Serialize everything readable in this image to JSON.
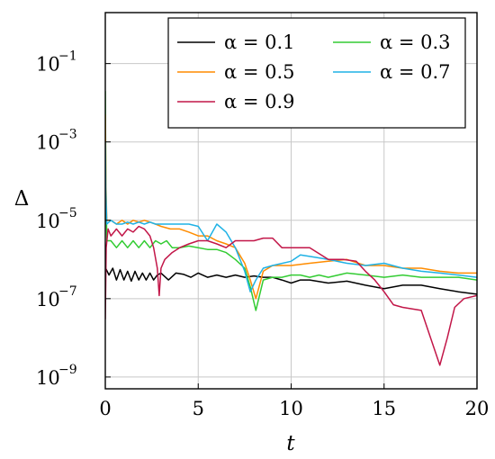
{
  "chart_data": {
    "type": "line",
    "xlabel": "t",
    "ylabel": "Δ",
    "xlim": [
      0,
      20
    ],
    "ylim": [
      5e-10,
      2
    ],
    "yscale": "log",
    "grid": true,
    "legend_position": "top-right",
    "xticks": [
      {
        "value": 0,
        "label": "0"
      },
      {
        "value": 5,
        "label": "5"
      },
      {
        "value": 10,
        "label": "10"
      },
      {
        "value": 15,
        "label": "15"
      },
      {
        "value": 20,
        "label": "20"
      }
    ],
    "yticks": [
      {
        "value": 0.1,
        "base": "10",
        "exp": "−1"
      },
      {
        "value": 0.001,
        "base": "10",
        "exp": "−3"
      },
      {
        "value": 1e-05,
        "base": "10",
        "exp": "−5"
      },
      {
        "value": 1e-07,
        "base": "10",
        "exp": "−7"
      },
      {
        "value": 1e-09,
        "base": "10",
        "exp": "−9"
      }
    ],
    "series": [
      {
        "name": "α = 0.1",
        "color": "#000000",
        "x": [
          0,
          0.02,
          0.2,
          0.4,
          0.6,
          0.8,
          1.0,
          1.2,
          1.4,
          1.6,
          1.8,
          2.0,
          2.2,
          2.4,
          2.6,
          2.8,
          3.0,
          3.4,
          3.8,
          4.2,
          4.6,
          5.0,
          5.5,
          6.0,
          6.5,
          7.0,
          7.5,
          8.0,
          8.5,
          9.0,
          9.5,
          10.0,
          10.5,
          11.0,
          12.0,
          13.0,
          14.0,
          15.0,
          16.0,
          17.0,
          18.0,
          19.0,
          20.0
        ],
        "y": [
          1.5e-07,
          6e-07,
          4e-07,
          6e-07,
          3e-07,
          5.5e-07,
          3e-07,
          5e-07,
          2.8e-07,
          5e-07,
          3e-07,
          4.5e-07,
          3e-07,
          4.5e-07,
          3e-07,
          4e-07,
          4.5e-07,
          3e-07,
          4.5e-07,
          4.2e-07,
          3.5e-07,
          4.5e-07,
          3.5e-07,
          4e-07,
          3.5e-07,
          4e-07,
          3.5e-07,
          3.8e-07,
          3.5e-07,
          3.5e-07,
          3e-07,
          2.5e-07,
          3e-07,
          3e-07,
          2.5e-07,
          2.8e-07,
          2.2e-07,
          1.8e-07,
          2.2e-07,
          2.2e-07,
          1.8e-07,
          1.5e-07,
          1.3e-07
        ]
      },
      {
        "name": "α = 0.3",
        "color": "#33cc33",
        "x": [
          0,
          0.03,
          0.08,
          0.3,
          0.6,
          0.9,
          1.2,
          1.5,
          1.8,
          2.1,
          2.4,
          2.7,
          3.0,
          3.3,
          3.6,
          4.0,
          4.5,
          5.0,
          5.5,
          6.0,
          6.5,
          7.0,
          7.5,
          7.8,
          8.1,
          8.5,
          9.0,
          9.5,
          10.0,
          10.5,
          11.0,
          11.5,
          12.0,
          13.0,
          14.0,
          15.0,
          16.0,
          17.0,
          18.0,
          19.0,
          20.0
        ],
        "y": [
          0.02,
          0.0001,
          3e-06,
          3e-06,
          2e-06,
          3e-06,
          2e-06,
          3e-06,
          2e-06,
          3e-06,
          2e-06,
          3e-06,
          2.5e-06,
          3e-06,
          2e-06,
          2e-06,
          2.2e-06,
          2e-06,
          1.8e-06,
          1.8e-06,
          1.5e-06,
          1e-06,
          6e-07,
          2e-07,
          5e-08,
          3e-07,
          3.5e-07,
          3.5e-07,
          4e-07,
          4e-07,
          3.5e-07,
          4e-07,
          3.5e-07,
          4.5e-07,
          4e-07,
          3.5e-07,
          4e-07,
          3.5e-07,
          3.5e-07,
          3.5e-07,
          3e-07
        ]
      },
      {
        "name": "α = 0.5",
        "color": "#ff8c00",
        "x": [
          0,
          0.03,
          0.08,
          0.3,
          0.6,
          0.9,
          1.2,
          1.5,
          1.8,
          2.1,
          2.4,
          2.7,
          3.0,
          3.5,
          4.0,
          4.5,
          5.0,
          5.5,
          6.0,
          6.5,
          7.0,
          7.5,
          7.8,
          8.1,
          8.5,
          9.0,
          10.0,
          11.0,
          12.0,
          13.0,
          14.0,
          15.0,
          16.0,
          17.0,
          18.0,
          19.0,
          20.0
        ],
        "y": [
          0.005,
          0.0001,
          1e-05,
          1e-05,
          8e-06,
          1e-05,
          8e-06,
          1e-05,
          9e-06,
          1e-05,
          9e-06,
          8e-06,
          7e-06,
          6e-06,
          6e-06,
          5e-06,
          4e-06,
          4e-06,
          3e-06,
          2.5e-06,
          2e-06,
          8e-07,
          3e-07,
          1e-07,
          5e-07,
          7e-07,
          7e-07,
          8e-07,
          9e-07,
          1e-06,
          7e-07,
          7e-07,
          6e-07,
          6e-07,
          5e-07,
          4.5e-07,
          4.5e-07
        ]
      },
      {
        "name": "α = 0.7",
        "color": "#1fb2e5",
        "x": [
          0,
          0.03,
          0.08,
          0.3,
          0.6,
          0.9,
          1.2,
          1.5,
          1.8,
          2.1,
          2.4,
          2.7,
          3.0,
          3.5,
          4.0,
          4.5,
          5.0,
          5.5,
          6.0,
          6.5,
          7.0,
          7.5,
          7.8,
          8.1,
          8.5,
          9.0,
          10.0,
          10.5,
          11.0,
          12.0,
          13.0,
          14.0,
          15.0,
          16.0,
          17.0,
          18.0,
          19.0,
          20.0
        ],
        "y": [
          0.001,
          5e-05,
          8e-06,
          1e-05,
          8e-06,
          8e-06,
          9e-06,
          8e-06,
          9e-06,
          8e-06,
          9e-06,
          8e-06,
          8e-06,
          8e-06,
          8e-06,
          8e-06,
          7e-06,
          3e-06,
          8e-06,
          5e-06,
          2e-06,
          5e-07,
          1.5e-07,
          3e-07,
          6e-07,
          7e-07,
          9e-07,
          1.3e-06,
          1.2e-06,
          1e-06,
          8e-07,
          7e-07,
          8e-07,
          6e-07,
          5e-07,
          4.5e-07,
          4e-07,
          3.5e-07
        ]
      },
      {
        "name": "α = 0.9",
        "color": "#c21648",
        "x": [
          0,
          0.05,
          0.15,
          0.3,
          0.6,
          0.9,
          1.2,
          1.5,
          1.8,
          2.1,
          2.4,
          2.6,
          2.8,
          2.9,
          3.0,
          3.2,
          3.6,
          4.0,
          4.5,
          5.0,
          5.5,
          6.0,
          6.5,
          7.0,
          7.5,
          8.0,
          8.5,
          9.0,
          9.5,
          10.0,
          11.0,
          12.0,
          12.8,
          13.5,
          14.0,
          14.5,
          15.0,
          15.5,
          16.0,
          17.0,
          18.0,
          18.4,
          18.8,
          19.3,
          20.0
        ],
        "y": [
          3e-08,
          2e-06,
          6e-06,
          4e-06,
          6e-06,
          4e-06,
          6e-06,
          5e-06,
          7e-06,
          6e-06,
          4e-06,
          2e-06,
          6e-07,
          1.2e-07,
          6e-07,
          1e-06,
          1.5e-06,
          2e-06,
          2.5e-06,
          3e-06,
          3e-06,
          2.5e-06,
          2e-06,
          3e-06,
          3e-06,
          3e-06,
          3.5e-06,
          3.5e-06,
          2e-06,
          2e-06,
          2e-06,
          1e-06,
          1e-06,
          9e-07,
          5e-07,
          3e-07,
          1.5e-07,
          7e-08,
          6e-08,
          5e-08,
          2e-09,
          1e-08,
          6e-08,
          1e-07,
          1.2e-07
        ]
      }
    ]
  }
}
